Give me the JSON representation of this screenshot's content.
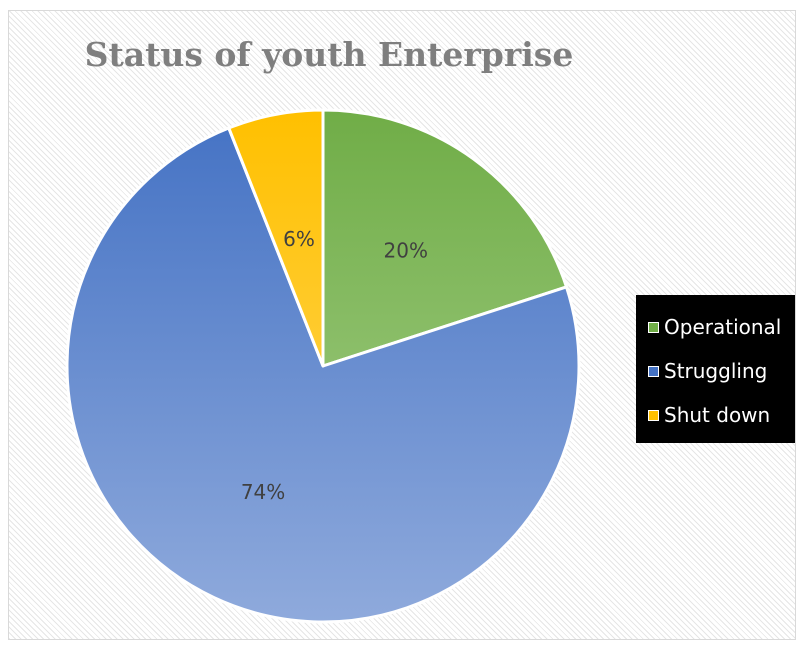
{
  "chart_data": {
    "type": "pie",
    "title": "Status of youth Enterprise",
    "categories": [
      "Operational",
      "Struggling",
      "Shut down"
    ],
    "values": [
      20,
      74,
      6
    ],
    "data_labels": [
      "20%",
      "74%",
      "6%"
    ],
    "legend_position": "right",
    "start_angle_deg": 0,
    "direction": "clockwise",
    "colors": {
      "Operational": {
        "top": "#70ad47",
        "bottom": "#a9d18e",
        "swatch": "#70ad47"
      },
      "Struggling": {
        "top": "#4472c4",
        "bottom": "#8faadc",
        "swatch": "#4472c4"
      },
      "Shut down": {
        "top": "#ffc000",
        "bottom": "#ffd966",
        "swatch": "#ffc000"
      }
    }
  }
}
